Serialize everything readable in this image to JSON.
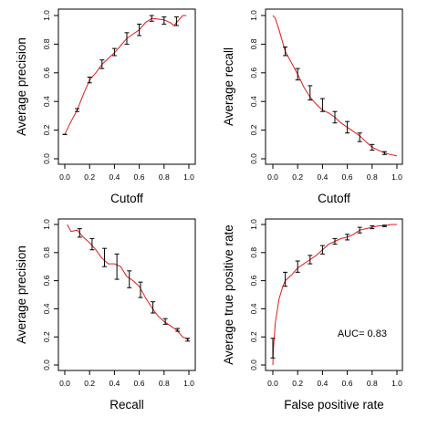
{
  "curve_color": "#e41a1c",
  "errorbar_color": "#000000",
  "chart_data": [
    {
      "type": "line",
      "xlabel": "Cutoff",
      "ylabel": "Average precision",
      "xlim": [
        0,
        1
      ],
      "ylim": [
        0,
        1
      ],
      "xticks": [
        "0.0",
        "0.2",
        "0.4",
        "0.6",
        "0.8",
        "1.0"
      ],
      "yticks": [
        "0.0",
        "0.2",
        "0.4",
        "0.6",
        "0.8",
        "1.0"
      ],
      "curve": {
        "x": [
          0.0,
          0.05,
          0.1,
          0.15,
          0.2,
          0.25,
          0.3,
          0.35,
          0.4,
          0.45,
          0.5,
          0.55,
          0.6,
          0.65,
          0.7,
          0.75,
          0.8,
          0.85,
          0.88,
          0.92,
          0.95,
          0.98
        ],
        "y": [
          0.17,
          0.26,
          0.34,
          0.45,
          0.55,
          0.6,
          0.66,
          0.7,
          0.74,
          0.79,
          0.84,
          0.87,
          0.9,
          0.95,
          0.98,
          0.975,
          0.97,
          0.95,
          0.93,
          0.97,
          1.0,
          1.0
        ]
      },
      "errorbars": [
        {
          "x": 0.0,
          "y": 0.17,
          "lo": 0.17,
          "hi": 0.17
        },
        {
          "x": 0.1,
          "y": 0.34,
          "lo": 0.33,
          "hi": 0.35
        },
        {
          "x": 0.2,
          "y": 0.55,
          "lo": 0.53,
          "hi": 0.57
        },
        {
          "x": 0.3,
          "y": 0.66,
          "lo": 0.63,
          "hi": 0.69
        },
        {
          "x": 0.4,
          "y": 0.74,
          "lo": 0.72,
          "hi": 0.77
        },
        {
          "x": 0.5,
          "y": 0.84,
          "lo": 0.8,
          "hi": 0.88
        },
        {
          "x": 0.6,
          "y": 0.9,
          "lo": 0.86,
          "hi": 0.94
        },
        {
          "x": 0.7,
          "y": 0.98,
          "lo": 0.96,
          "hi": 1.0
        },
        {
          "x": 0.8,
          "y": 0.97,
          "lo": 0.94,
          "hi": 0.99
        },
        {
          "x": 0.9,
          "y": 0.96,
          "lo": 0.93,
          "hi": 0.99
        }
      ]
    },
    {
      "type": "line",
      "xlabel": "Cutoff",
      "ylabel": "Average recall",
      "xlim": [
        0,
        1
      ],
      "ylim": [
        0,
        1
      ],
      "xticks": [
        "0.0",
        "0.2",
        "0.4",
        "0.6",
        "0.8",
        "1.0"
      ],
      "yticks": [
        "0.0",
        "0.2",
        "0.4",
        "0.6",
        "0.8",
        "1.0"
      ],
      "curve": {
        "x": [
          0.0,
          0.02,
          0.05,
          0.1,
          0.15,
          0.2,
          0.25,
          0.3,
          0.35,
          0.4,
          0.45,
          0.5,
          0.55,
          0.6,
          0.65,
          0.7,
          0.75,
          0.8,
          0.85,
          0.9,
          0.95,
          1.0
        ],
        "y": [
          1.0,
          0.98,
          0.9,
          0.75,
          0.67,
          0.59,
          0.5,
          0.43,
          0.38,
          0.34,
          0.32,
          0.29,
          0.25,
          0.22,
          0.19,
          0.16,
          0.12,
          0.08,
          0.06,
          0.04,
          0.03,
          0.02
        ]
      },
      "errorbars": [
        {
          "x": 0.1,
          "y": 0.75,
          "lo": 0.72,
          "hi": 0.78
        },
        {
          "x": 0.2,
          "y": 0.59,
          "lo": 0.55,
          "hi": 0.63
        },
        {
          "x": 0.3,
          "y": 0.46,
          "lo": 0.41,
          "hi": 0.51
        },
        {
          "x": 0.4,
          "y": 0.37,
          "lo": 0.33,
          "hi": 0.42
        },
        {
          "x": 0.5,
          "y": 0.29,
          "lo": 0.25,
          "hi": 0.33
        },
        {
          "x": 0.6,
          "y": 0.22,
          "lo": 0.18,
          "hi": 0.26
        },
        {
          "x": 0.7,
          "y": 0.15,
          "lo": 0.12,
          "hi": 0.18
        },
        {
          "x": 0.8,
          "y": 0.08,
          "lo": 0.06,
          "hi": 0.1
        },
        {
          "x": 0.9,
          "y": 0.04,
          "lo": 0.03,
          "hi": 0.05
        }
      ]
    },
    {
      "type": "line",
      "xlabel": "Recall",
      "ylabel": "Average precision",
      "xlim": [
        0,
        1
      ],
      "ylim": [
        0,
        1
      ],
      "xticks": [
        "0.0",
        "0.2",
        "0.4",
        "0.6",
        "0.8",
        "1.0"
      ],
      "yticks": [
        "0.0",
        "0.2",
        "0.4",
        "0.6",
        "0.8",
        "1.0"
      ],
      "curve": {
        "x": [
          0.02,
          0.05,
          0.1,
          0.15,
          0.2,
          0.25,
          0.3,
          0.35,
          0.4,
          0.45,
          0.5,
          0.55,
          0.6,
          0.65,
          0.7,
          0.75,
          0.8,
          0.85,
          0.9,
          0.95,
          1.0
        ],
        "y": [
          1.0,
          0.95,
          0.96,
          0.91,
          0.87,
          0.82,
          0.76,
          0.72,
          0.72,
          0.7,
          0.63,
          0.6,
          0.56,
          0.48,
          0.41,
          0.35,
          0.31,
          0.28,
          0.25,
          0.2,
          0.18
        ]
      },
      "errorbars": [
        {
          "x": 0.12,
          "y": 0.94,
          "lo": 0.91,
          "hi": 0.97
        },
        {
          "x": 0.22,
          "y": 0.86,
          "lo": 0.82,
          "hi": 0.9
        },
        {
          "x": 0.32,
          "y": 0.77,
          "lo": 0.7,
          "hi": 0.83
        },
        {
          "x": 0.42,
          "y": 0.7,
          "lo": 0.61,
          "hi": 0.79
        },
        {
          "x": 0.52,
          "y": 0.61,
          "lo": 0.55,
          "hi": 0.67
        },
        {
          "x": 0.61,
          "y": 0.53,
          "lo": 0.48,
          "hi": 0.59
        },
        {
          "x": 0.71,
          "y": 0.41,
          "lo": 0.37,
          "hi": 0.45
        },
        {
          "x": 0.81,
          "y": 0.31,
          "lo": 0.29,
          "hi": 0.33
        },
        {
          "x": 0.91,
          "y": 0.25,
          "lo": 0.24,
          "hi": 0.26
        },
        {
          "x": 0.99,
          "y": 0.18,
          "lo": 0.17,
          "hi": 0.19
        }
      ]
    },
    {
      "type": "line",
      "xlabel": "False positive rate",
      "ylabel": "Average true positive rate",
      "xlim": [
        0,
        1
      ],
      "ylim": [
        0,
        1
      ],
      "xticks": [
        "0.0",
        "0.2",
        "0.4",
        "0.6",
        "0.8",
        "1.0"
      ],
      "yticks": [
        "0.0",
        "0.2",
        "0.4",
        "0.6",
        "0.8",
        "1.0"
      ],
      "annotation": "AUC= 0.83",
      "curve": {
        "x": [
          0.0,
          0.005,
          0.02,
          0.05,
          0.08,
          0.1,
          0.15,
          0.2,
          0.25,
          0.3,
          0.35,
          0.4,
          0.45,
          0.5,
          0.55,
          0.6,
          0.65,
          0.7,
          0.75,
          0.8,
          0.85,
          0.9,
          0.95,
          1.0
        ],
        "y": [
          0.0,
          0.12,
          0.3,
          0.47,
          0.56,
          0.6,
          0.64,
          0.69,
          0.72,
          0.75,
          0.78,
          0.82,
          0.86,
          0.88,
          0.9,
          0.91,
          0.93,
          0.96,
          0.97,
          0.98,
          0.99,
          0.99,
          1.0,
          1.0
        ]
      },
      "errorbars": [
        {
          "x": 0.0,
          "y": 0.12,
          "lo": 0.05,
          "hi": 0.19
        },
        {
          "x": 0.1,
          "y": 0.61,
          "lo": 0.56,
          "hi": 0.66
        },
        {
          "x": 0.2,
          "y": 0.7,
          "lo": 0.66,
          "hi": 0.74
        },
        {
          "x": 0.3,
          "y": 0.75,
          "lo": 0.72,
          "hi": 0.78
        },
        {
          "x": 0.4,
          "y": 0.82,
          "lo": 0.79,
          "hi": 0.85
        },
        {
          "x": 0.5,
          "y": 0.88,
          "lo": 0.86,
          "hi": 0.9
        },
        {
          "x": 0.6,
          "y": 0.91,
          "lo": 0.89,
          "hi": 0.93
        },
        {
          "x": 0.7,
          "y": 0.96,
          "lo": 0.94,
          "hi": 0.98
        },
        {
          "x": 0.8,
          "y": 0.98,
          "lo": 0.97,
          "hi": 0.99
        },
        {
          "x": 0.9,
          "y": 0.99,
          "lo": 0.985,
          "hi": 0.995
        }
      ]
    }
  ]
}
